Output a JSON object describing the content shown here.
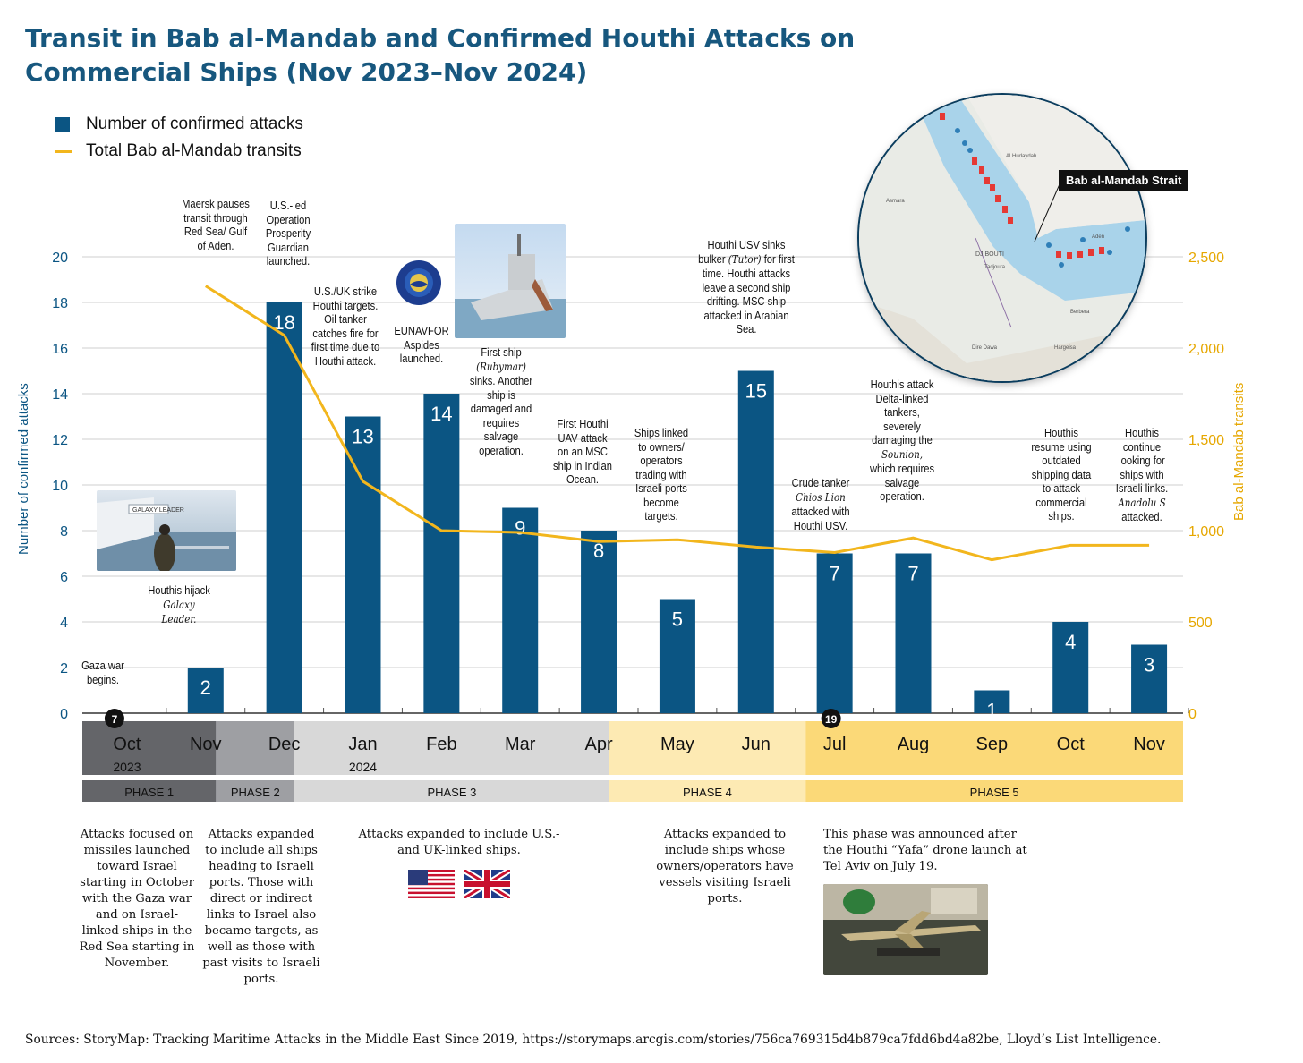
{
  "title": "Transit in Bab al-Mandab and Confirmed Houthi Attacks on Commercial Ships (Nov 2023–Nov 2024)",
  "legend": {
    "bars": "Number of confirmed attacks",
    "line": "Total Bab al-Mandab transits"
  },
  "chart_data": {
    "type": "bar+line",
    "categories": [
      "Oct",
      "Nov",
      "Dec",
      "Jan",
      "Feb",
      "Mar",
      "Apr",
      "May",
      "Jun",
      "Jul",
      "Aug",
      "Sep",
      "Oct",
      "Nov"
    ],
    "year_labels": {
      "oct_2023": "2023",
      "jan_2024": "2024"
    },
    "series": [
      {
        "name": "Number of confirmed attacks",
        "axis": "left",
        "values": [
          null,
          2,
          18,
          13,
          14,
          9,
          8,
          5,
          15,
          7,
          7,
          1,
          4,
          3
        ]
      },
      {
        "name": "Total Bab al-Mandab transits",
        "axis": "right",
        "values": [
          null,
          2340,
          2070,
          1270,
          1000,
          990,
          940,
          950,
          910,
          880,
          960,
          840,
          920,
          920
        ]
      }
    ],
    "ylabel_left": "Number of confirmed attacks",
    "ylabel_right": "Bab al-Mandab transits",
    "yticks_left": [
      "0",
      "2",
      "4",
      "6",
      "8",
      "10",
      "12",
      "14",
      "16",
      "18",
      "20"
    ],
    "yticks_right": [
      "0",
      "500",
      "1,000",
      "1,500",
      "2,000",
      "2,500"
    ],
    "ylim_left": [
      0,
      20
    ],
    "ylim_right": [
      0,
      2500
    ],
    "markers": [
      {
        "month": "Oct",
        "label": "7"
      },
      {
        "month": "Jul",
        "label": "19"
      }
    ],
    "grid": true
  },
  "phases": [
    {
      "label": "PHASE 1",
      "color": "#646569"
    },
    {
      "label": "PHASE 2",
      "color": "#9e9fa3"
    },
    {
      "label": "PHASE 3",
      "color": "#d8d8d8"
    },
    {
      "label": "PHASE 4",
      "color": "#fdeab3"
    },
    {
      "label": "PHASE 5",
      "color": "#fbd978"
    }
  ],
  "annotations": {
    "oct": "Gaza war begins.",
    "nov_a": "Houthis hijack",
    "nov_b": "Galaxy Leader.",
    "nov_top": "Maersk pauses transit through Red Sea/ Gulf of Aden.",
    "dec": "U.S.-led Operation Prosperity Guardian launched.",
    "jan": "U.S./UK strike Houthi targets. Oil tanker catches fire for first time due to Houthi attack.",
    "feb": "EUNAVFOR Aspides launched.",
    "mar_a": "First ship",
    "mar_b": "(Rubymar)",
    "mar_c": "sinks. Another ship is damaged and requires salvage operation.",
    "apr": "First Houthi UAV attack on an MSC ship in Indian Ocean.",
    "may": "Ships linked to owners/ operators trading with Israeli ports become targets.",
    "jun_a": "Houthi USV sinks bulker",
    "jun_b": "(Tutor)",
    "jun_c": "for first time. Houthi attacks leave a second ship drifting. MSC ship attacked in Arabian Sea.",
    "jul_a": "Crude tanker",
    "jul_b": "Chios Lion",
    "jul_c": "attacked with Houthi USV.",
    "aug_a": "Houthis attack Delta-linked tankers, severely damaging the",
    "aug_b": "Sounion,",
    "aug_c": "which requires salvage operation.",
    "oct2": "Houthis resume using outdated shipping data to attack commercial ships.",
    "nov2_a": "Houthis continue looking for ships with Israeli links.",
    "nov2_b": "Anadolu S",
    "nov2_c": "attacked."
  },
  "photo_captions": {
    "galaxy_ship_text": "GALAXY LEADER"
  },
  "map": {
    "strait_label": "Bab al-Mandab Strait",
    "places": [
      "Al Hudaydah",
      "Asmara",
      "DJIBOUTI",
      "Tadjoura",
      "Djibouti",
      "Aden",
      "Berbera",
      "Dire Dawa",
      "Harar",
      "Hargeisa",
      "Dikhil",
      "Mekele"
    ]
  },
  "phase_notes": {
    "p1": "Attacks focused on missiles launched toward Israel starting in October with the Gaza war and on Israel-linked ships in the Red Sea starting in November.",
    "p2": "Attacks expanded to include all ships heading to Israeli ports. Those with direct or indirect links to Israel also became targets, as well as those with past visits to Israeli ports.",
    "p3": "Attacks expanded to include U.S.- and UK-linked ships.",
    "p4": "Attacks expanded to include ships whose owners/operators have vessels visiting Israeli ports.",
    "p5": "This phase was announced after the Houthi “Yafa” drone launch at Tel Aviv on July 19."
  },
  "source": "Sources: StoryMap: Tracking Maritime Attacks in the Middle East Since 2019, https://storymaps.arcgis.com/stories/756ca769315d4b879ca7fdd6bd4a82be, Lloyd’s List Intelligence.",
  "colors": {
    "bar": "#0b5583",
    "line": "#f2b61d",
    "title": "#17577e",
    "right_axis": "#e6a700"
  }
}
